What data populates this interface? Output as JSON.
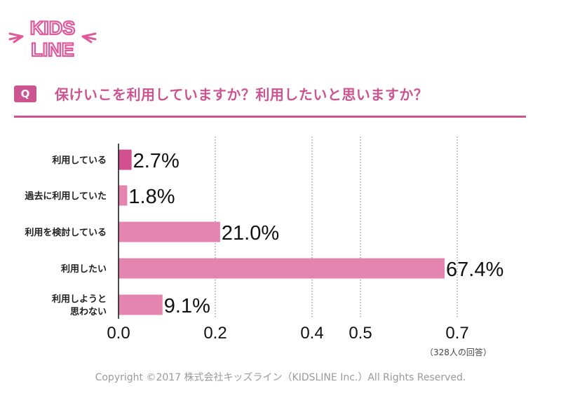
{
  "brand": {
    "logo_text_top": "KIDS",
    "logo_text_bottom": "LINE"
  },
  "question": {
    "badge": "Q",
    "text": "保けいこを利用していますか？利用したいと思いますか？"
  },
  "colors": {
    "accent": "#cc5591",
    "bar_primary": "#d0518e",
    "bar": "#e485b0",
    "grid": "#777777"
  },
  "chart_data": {
    "type": "bar",
    "orientation": "horizontal",
    "categories": [
      [
        "利用している"
      ],
      [
        "過去に利用していた"
      ],
      [
        "利用を検討している"
      ],
      [
        "利用したい"
      ],
      [
        "利用しようと",
        "思わない"
      ]
    ],
    "values": [
      0.027,
      0.018,
      0.21,
      0.674,
      0.091
    ],
    "value_labels": [
      "2.7%",
      "1.8%",
      "21.0%",
      "67.4%",
      "9.1%"
    ],
    "x_ticks": [
      0.0,
      0.2,
      0.4,
      0.5,
      0.7
    ],
    "x_tick_labels": [
      "0.0",
      "0.2",
      "0.4",
      "0.5",
      "0.7"
    ],
    "xlim": [
      0,
      0.8
    ],
    "grid": "vertical-dotted"
  },
  "note": "（328人の回答）",
  "copyright": "Copyright ©2017 株式会社キッズライン（KIDSLINE Inc.）All Rights Reserved."
}
